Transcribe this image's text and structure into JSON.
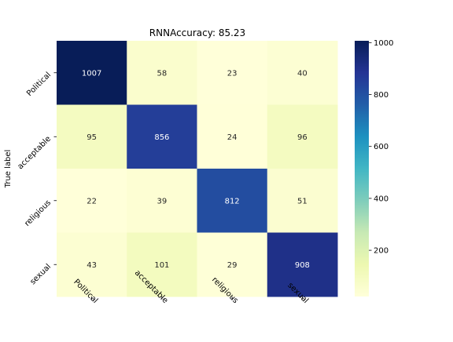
{
  "chart_data": {
    "type": "heatmap",
    "title": "RNNAccuracy: 85.23",
    "xlabel": "",
    "ylabel": "True label",
    "x_categories": [
      "Political",
      "acceptable",
      "religious",
      "sexual"
    ],
    "y_categories": [
      "Political",
      "acceptable",
      "religious",
      "sexual"
    ],
    "values": [
      [
        1007,
        58,
        23,
        40
      ],
      [
        95,
        856,
        24,
        96
      ],
      [
        22,
        39,
        812,
        51
      ],
      [
        43,
        101,
        29,
        908
      ]
    ],
    "colormap": "YlGnBu",
    "colorbar": {
      "min": 22,
      "max": 1007,
      "ticks": [
        200,
        400,
        600,
        800,
        1000
      ]
    }
  }
}
